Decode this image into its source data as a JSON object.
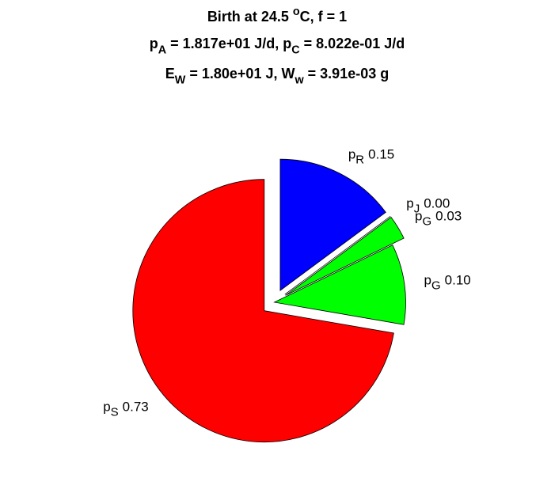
{
  "chart_data": {
    "type": "pie",
    "title": [
      [
        {
          "text": "Birth at 24.5 "
        },
        {
          "sup": "o"
        },
        {
          "text": "C, f = 1"
        }
      ],
      [
        {
          "text": "p"
        },
        {
          "sub": "A"
        },
        {
          "text": " = 1.817e+01 J/d, p"
        },
        {
          "sub": "C"
        },
        {
          "text": " = 8.022e-01 J/d"
        }
      ],
      [
        {
          "text": "E"
        },
        {
          "sub": "W"
        },
        {
          "text": " = 1.80e+01 J, W"
        },
        {
          "sub": "w"
        },
        {
          "text": " = 3.91e-03 g"
        }
      ]
    ],
    "categories": [
      {
        "text": "p",
        "sub": "R"
      },
      {
        "text": "p",
        "sub": "J"
      },
      {
        "text": "p",
        "sub": "G"
      },
      {
        "text": "p",
        "sub": "G"
      },
      {
        "text": "p",
        "sub": "S"
      }
    ],
    "values": [
      0.15,
      0.0,
      0.03,
      0.1,
      0.73
    ],
    "value_labels": [
      "0.15",
      "0.00",
      "0.03",
      "0.10",
      "0.73"
    ],
    "colors": [
      "#0000ff",
      "#00ff00",
      "#00ff00",
      "#00ff00",
      "#ff0000"
    ],
    "explode": [
      1,
      1,
      1,
      0,
      1
    ]
  }
}
